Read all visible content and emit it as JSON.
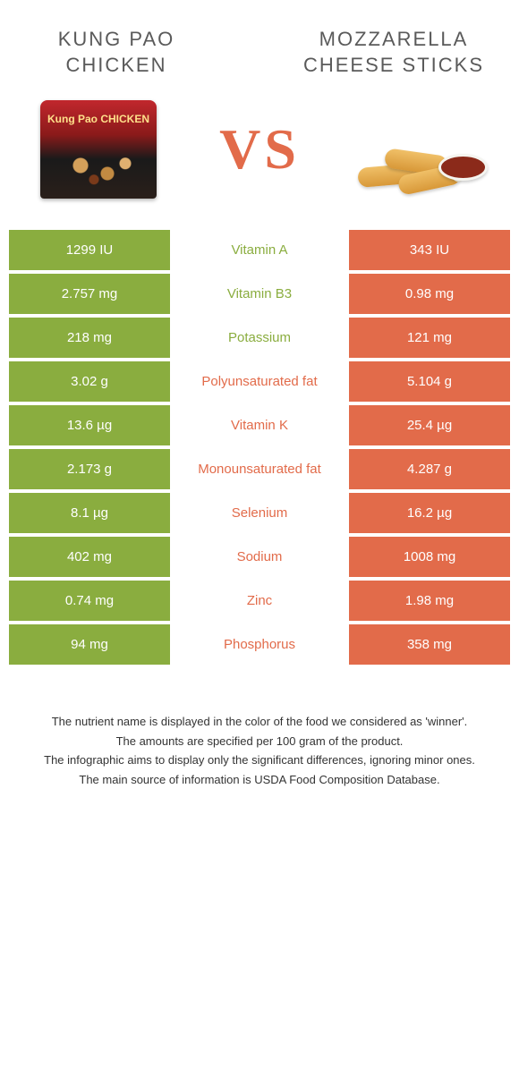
{
  "colors": {
    "left": "#8aad3f",
    "right": "#e26b4a",
    "vs": "#e26b4a"
  },
  "foods": {
    "left_title": "Kung Pao Chicken",
    "right_title": "Mozzarella cheese sticks"
  },
  "vs_label": "VS",
  "nutrients": [
    {
      "left": "1299 IU",
      "name": "Vitamin A",
      "right": "343 IU",
      "winner": "left"
    },
    {
      "left": "2.757 mg",
      "name": "Vitamin B3",
      "right": "0.98 mg",
      "winner": "left"
    },
    {
      "left": "218 mg",
      "name": "Potassium",
      "right": "121 mg",
      "winner": "left"
    },
    {
      "left": "3.02 g",
      "name": "Polyunsaturated fat",
      "right": "5.104 g",
      "winner": "right"
    },
    {
      "left": "13.6 µg",
      "name": "Vitamin K",
      "right": "25.4 µg",
      "winner": "right"
    },
    {
      "left": "2.173 g",
      "name": "Monounsaturated fat",
      "right": "4.287 g",
      "winner": "right"
    },
    {
      "left": "8.1 µg",
      "name": "Selenium",
      "right": "16.2 µg",
      "winner": "right"
    },
    {
      "left": "402 mg",
      "name": "Sodium",
      "right": "1008 mg",
      "winner": "right"
    },
    {
      "left": "0.74 mg",
      "name": "Zinc",
      "right": "1.98 mg",
      "winner": "right"
    },
    {
      "left": "94 mg",
      "name": "Phosphorus",
      "right": "358 mg",
      "winner": "right"
    }
  ],
  "footnotes": [
    "The nutrient name is displayed in the color of the food we considered as 'winner'.",
    "The amounts are specified per 100 gram of the product.",
    "The infographic aims to display only the significant differences, ignoring minor ones.",
    "The main source of information is USDA Food Composition Database."
  ]
}
